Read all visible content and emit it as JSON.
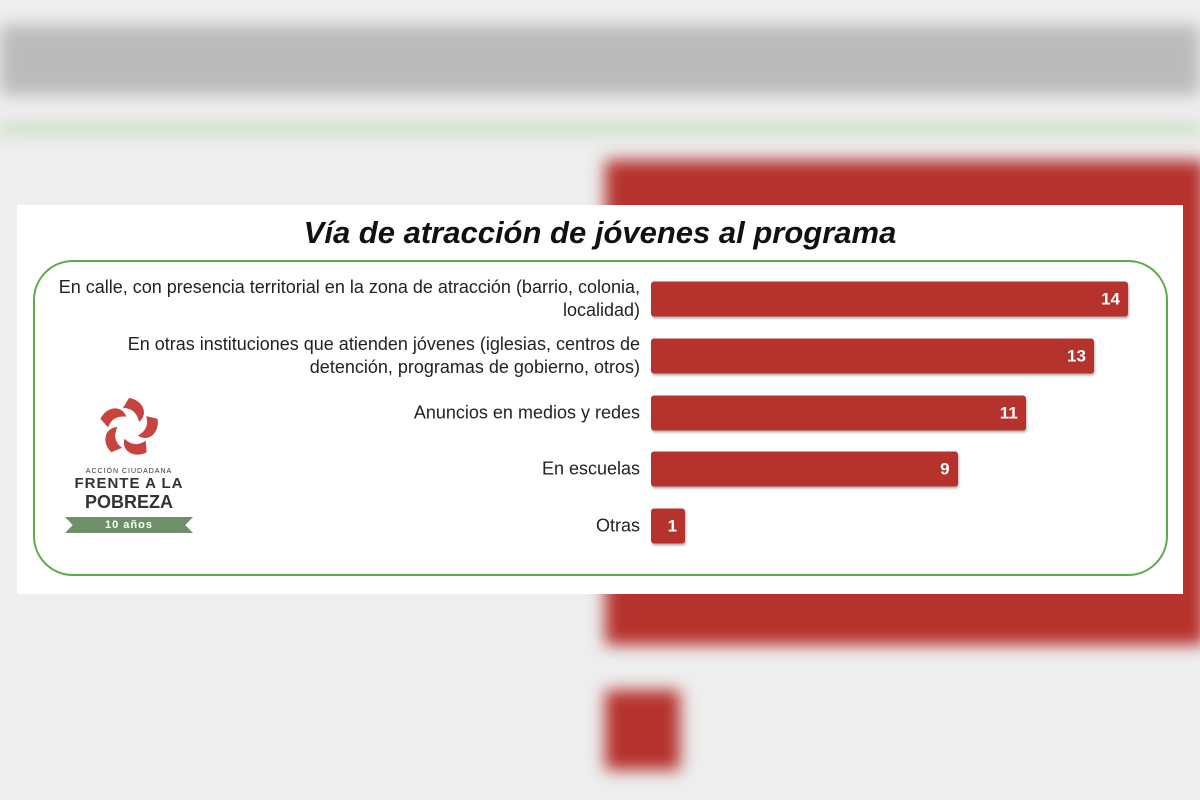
{
  "chart_data": {
    "type": "hbar",
    "title": "Vía de atracción de jóvenes al programa",
    "categories": [
      "En calle, con presencia territorial en la zona de atracción (barrio, colonia, localidad)",
      "En otras instituciones que atienden jóvenes (iglesias, centros de detención, programas de gobierno, otros)",
      "Anuncios en medios y redes",
      "En escuelas",
      "Otras"
    ],
    "values": [
      14,
      13,
      11,
      9,
      1
    ],
    "color": "#b5322d"
  },
  "logo": {
    "tagline": "ACCIÓN CIUDADANA",
    "line1": "FRENTE A LA",
    "line2": "POBREZA",
    "badge": "10 años"
  }
}
